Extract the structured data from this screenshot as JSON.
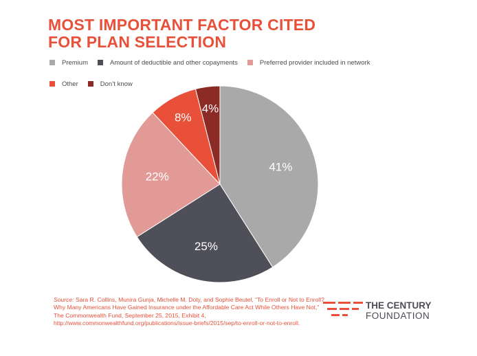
{
  "chart_data": {
    "type": "pie",
    "title": "MOST IMPORTANT FACTOR CITED FOR PLAN SELECTION",
    "legend_placement": "top",
    "series": [
      {
        "name": "Premium",
        "value": 41,
        "label": "41%",
        "color": "#a9a9a9"
      },
      {
        "name": "Amount of deductible and other copayments",
        "value": 25,
        "label": "25%",
        "color": "#4e4f59"
      },
      {
        "name": "Preferred provider included in network",
        "value": 22,
        "label": "22%",
        "color": "#e29a96"
      },
      {
        "name": "Other",
        "value": 8,
        "label": "8%",
        "color": "#e8503a"
      },
      {
        "name": "Don’t know",
        "value": 4,
        "label": "4%",
        "color": "#8c2a26"
      }
    ]
  },
  "title_lines": [
    "MOST IMPORTANT FACTOR CITED",
    "FOR PLAN SELECTION"
  ],
  "source": {
    "label": "Source:",
    "text": "Sara R. Collins, Munira Gunja, Michelle M. Doty, and Sophie Beutel, “To Enroll or Not to Enroll? Why Many Americans Have Gained Insurance under the Affordable Care Act While Others Have Not,” The Commonwealth Fund, September 25, 2015, Exhibit 4, http://www.commonwealthfund.org/publications/issue-briefs/2015/sep/to-enroll-or-not-to-enroll."
  },
  "logo": {
    "line1": "THE CENTURY",
    "line2": "FOUNDATION",
    "accent": "#e8503a",
    "text_color": "#4b4b53"
  }
}
